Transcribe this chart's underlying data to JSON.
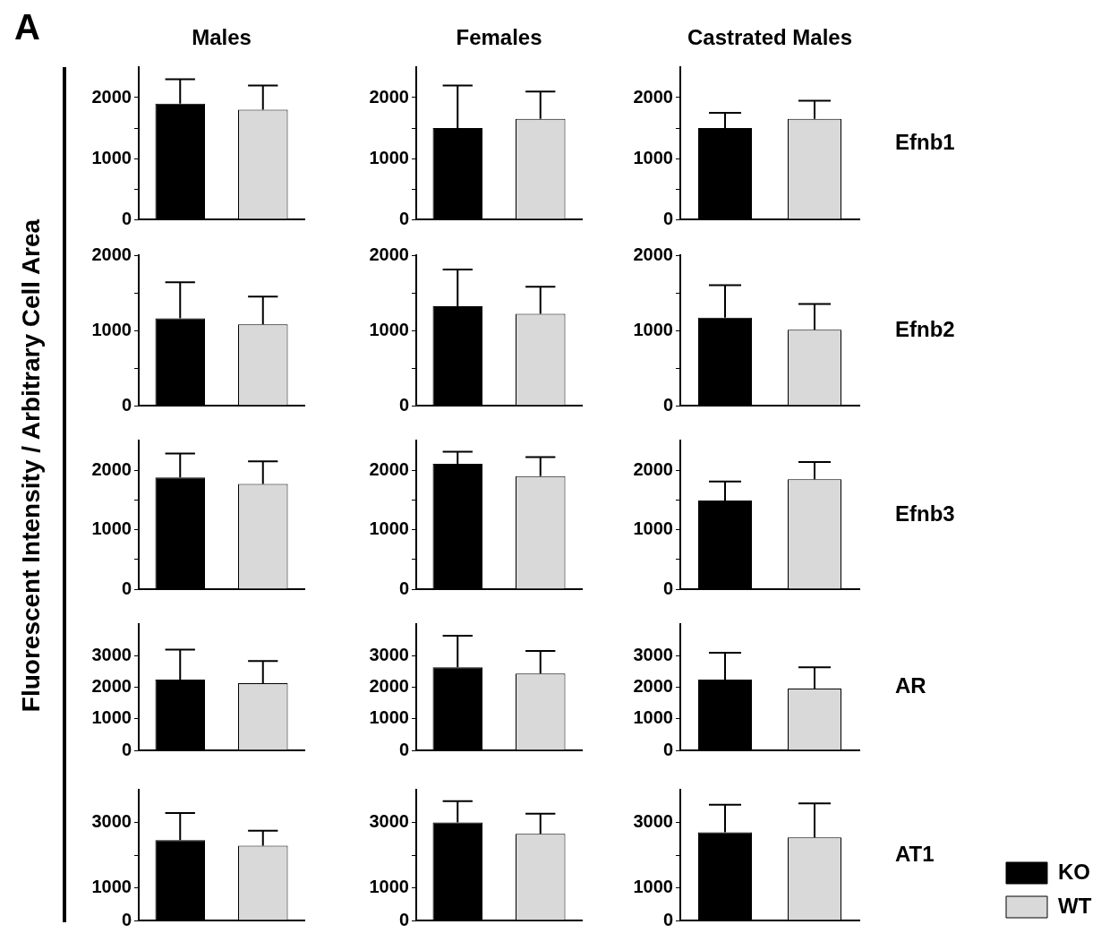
{
  "chart_data": [
    {
      "type": "bar",
      "title": "Males",
      "ylabel": "Fluorescent Intensity / Arbitrary Cell Area",
      "annotations": [
        "A"
      ],
      "categories": [
        null,
        null
      ],
      "tick_labels": "y",
      "ylim": [
        0,
        2500
      ],
      "yticks": [
        0,
        {
          "value": 500,
          "label": null
        },
        1000,
        {
          "value": 1500,
          "label": null
        },
        2000
      ],
      "series": [
        {
          "color": "#000000",
          "values": [
            1900,
            null
          ],
          "errors": [
            [
              1900,
              2300
            ],
            null
          ]
        },
        {
          "color": "#d9d9d9",
          "values": [
            null,
            1800
          ],
          "errors": [
            null,
            [
              1800,
              2200
            ]
          ]
        }
      ]
    },
    {
      "type": "bar",
      "title": "Females",
      "categories": [
        null,
        null
      ],
      "tick_labels": "y",
      "ylim": [
        0,
        2500
      ],
      "yticks": [
        0,
        {
          "value": 500,
          "label": null
        },
        1000,
        {
          "value": 1500,
          "label": null
        },
        2000
      ],
      "series": [
        {
          "color": "#000000",
          "values": [
            1500,
            null
          ],
          "errors": [
            [
              1500,
              2200
            ],
            null
          ]
        },
        {
          "color": "#d9d9d9",
          "values": [
            null,
            1650
          ],
          "errors": [
            null,
            [
              1650,
              2100
            ]
          ]
        }
      ]
    },
    {
      "type": "bar",
      "title": "Castrated Males",
      "annotations": [
        "Efnb1"
      ],
      "categories": [
        null,
        null
      ],
      "tick_labels": "y",
      "ylim": [
        0,
        2500
      ],
      "yticks": [
        0,
        {
          "value": 500,
          "label": null
        },
        1000,
        {
          "value": 1500,
          "label": null
        },
        2000
      ],
      "series": [
        {
          "color": "#000000",
          "values": [
            1500,
            null
          ],
          "errors": [
            [
              1500,
              1750
            ],
            null
          ]
        },
        {
          "color": "#d9d9d9",
          "values": [
            null,
            1650
          ],
          "errors": [
            null,
            [
              1650,
              1950
            ]
          ]
        }
      ]
    },
    {
      "type": "bar",
      "categories": [
        null,
        null
      ],
      "tick_labels": "y",
      "ylim": [
        0,
        2000
      ],
      "yticks": [
        0,
        {
          "value": 500,
          "label": null
        },
        1000,
        {
          "value": 1500,
          "label": null
        },
        2000
      ],
      "series": [
        {
          "color": "#000000",
          "values": [
            1160,
            null
          ],
          "errors": [
            [
              1160,
              1640
            ],
            null
          ]
        },
        {
          "color": "#d9d9d9",
          "values": [
            null,
            1080
          ],
          "errors": [
            null,
            [
              1080,
              1450
            ]
          ]
        }
      ]
    },
    {
      "type": "bar",
      "categories": [
        null,
        null
      ],
      "tick_labels": "y",
      "ylim": [
        0,
        2000
      ],
      "yticks": [
        0,
        {
          "value": 500,
          "label": null
        },
        1000,
        {
          "value": 1500,
          "label": null
        },
        2000
      ],
      "series": [
        {
          "color": "#000000",
          "values": [
            1320,
            null
          ],
          "errors": [
            [
              1320,
              1810
            ],
            null
          ]
        },
        {
          "color": "#d9d9d9",
          "values": [
            null,
            1220
          ],
          "errors": [
            null,
            [
              1220,
              1580
            ]
          ]
        }
      ]
    },
    {
      "type": "bar",
      "annotations": [
        "Efnb2"
      ],
      "categories": [
        null,
        null
      ],
      "tick_labels": "y",
      "ylim": [
        0,
        2000
      ],
      "yticks": [
        0,
        {
          "value": 500,
          "label": null
        },
        1000,
        {
          "value": 1500,
          "label": null
        },
        2000
      ],
      "series": [
        {
          "color": "#000000",
          "values": [
            1170,
            null
          ],
          "errors": [
            [
              1170,
              1600
            ],
            null
          ]
        },
        {
          "color": "#d9d9d9",
          "values": [
            null,
            1010
          ],
          "errors": [
            null,
            [
              1010,
              1350
            ]
          ]
        }
      ]
    },
    {
      "type": "bar",
      "categories": [
        null,
        null
      ],
      "tick_labels": "y",
      "ylim": [
        0,
        2500
      ],
      "yticks": [
        0,
        {
          "value": 500,
          "label": null
        },
        1000,
        {
          "value": 1500,
          "label": null
        },
        2000
      ],
      "series": [
        {
          "color": "#000000",
          "values": [
            1880,
            null
          ],
          "errors": [
            [
              1880,
              2280
            ],
            null
          ]
        },
        {
          "color": "#d9d9d9",
          "values": [
            null,
            1770
          ],
          "errors": [
            null,
            [
              1770,
              2150
            ]
          ]
        }
      ]
    },
    {
      "type": "bar",
      "categories": [
        null,
        null
      ],
      "tick_labels": "y",
      "ylim": [
        0,
        2500
      ],
      "yticks": [
        0,
        {
          "value": 500,
          "label": null
        },
        1000,
        {
          "value": 1500,
          "label": null
        },
        2000
      ],
      "series": [
        {
          "color": "#000000",
          "values": [
            2110,
            null
          ],
          "errors": [
            [
              2110,
              2310
            ],
            null
          ]
        },
        {
          "color": "#d9d9d9",
          "values": [
            null,
            1900
          ],
          "errors": [
            null,
            [
              1900,
              2220
            ]
          ]
        }
      ]
    },
    {
      "type": "bar",
      "annotations": [
        "Efnb3"
      ],
      "categories": [
        null,
        null
      ],
      "tick_labels": "y",
      "ylim": [
        0,
        2500
      ],
      "yticks": [
        0,
        {
          "value": 500,
          "label": null
        },
        1000,
        {
          "value": 1500,
          "label": null
        },
        2000
      ],
      "series": [
        {
          "color": "#000000",
          "values": [
            1490,
            null
          ],
          "errors": [
            [
              1490,
              1810
            ],
            null
          ]
        },
        {
          "color": "#d9d9d9",
          "values": [
            null,
            1850
          ],
          "errors": [
            null,
            [
              1850,
              2140
            ]
          ]
        }
      ]
    },
    {
      "type": "bar",
      "categories": [
        null,
        null
      ],
      "tick_labels": "y",
      "ylim": [
        0,
        4000
      ],
      "yticks": [
        0,
        1000,
        2000,
        3000
      ],
      "series": [
        {
          "color": "#000000",
          "values": [
            2240,
            null
          ],
          "errors": [
            [
              2240,
              3190
            ],
            null
          ]
        },
        {
          "color": "#d9d9d9",
          "values": [
            null,
            2130
          ],
          "errors": [
            null,
            [
              2130,
              2830
            ]
          ]
        }
      ]
    },
    {
      "type": "bar",
      "categories": [
        null,
        null
      ],
      "tick_labels": "y",
      "ylim": [
        0,
        4000
      ],
      "yticks": [
        0,
        1000,
        2000,
        3000
      ],
      "series": [
        {
          "color": "#000000",
          "values": [
            2630,
            null
          ],
          "errors": [
            [
              2630,
              3630
            ],
            null
          ]
        },
        {
          "color": "#d9d9d9",
          "values": [
            null,
            2430
          ],
          "errors": [
            null,
            [
              2430,
              3150
            ]
          ]
        }
      ]
    },
    {
      "type": "bar",
      "annotations": [
        "AR"
      ],
      "categories": [
        null,
        null
      ],
      "tick_labels": "y",
      "ylim": [
        0,
        4000
      ],
      "yticks": [
        0,
        1000,
        2000,
        3000
      ],
      "series": [
        {
          "color": "#000000",
          "values": [
            2240,
            null
          ],
          "errors": [
            [
              2240,
              3090
            ],
            null
          ]
        },
        {
          "color": "#d9d9d9",
          "values": [
            null,
            1960
          ],
          "errors": [
            null,
            [
              1960,
              2630
            ]
          ]
        }
      ]
    },
    {
      "type": "bar",
      "categories": [
        null,
        null
      ],
      "tick_labels": "y",
      "ylim": [
        0,
        4000
      ],
      "yticks": [
        0,
        1000,
        {
          "value": 2000,
          "label": null
        },
        3000
      ],
      "series": [
        {
          "color": "#000000",
          "values": [
            2460,
            null
          ],
          "errors": [
            [
              2460,
              3290
            ],
            null
          ]
        },
        {
          "color": "#d9d9d9",
          "values": [
            null,
            2290
          ],
          "errors": [
            null,
            [
              2290,
              2750
            ]
          ]
        }
      ]
    },
    {
      "type": "bar",
      "categories": [
        null,
        null
      ],
      "tick_labels": "y",
      "ylim": [
        0,
        4000
      ],
      "yticks": [
        0,
        1000,
        {
          "value": 2000,
          "label": null
        },
        3000
      ],
      "series": [
        {
          "color": "#000000",
          "values": [
            3000,
            null
          ],
          "errors": [
            [
              3000,
              3650
            ],
            null
          ]
        },
        {
          "color": "#d9d9d9",
          "values": [
            null,
            2650
          ],
          "errors": [
            null,
            [
              2650,
              3270
            ]
          ]
        }
      ]
    },
    {
      "type": "bar",
      "annotations": [
        "AT1"
      ],
      "legend": "right",
      "categories": [
        null,
        null
      ],
      "tick_labels": "y",
      "ylim": [
        0,
        4000
      ],
      "yticks": [
        0,
        1000,
        {
          "value": 2000,
          "label": null
        },
        3000
      ],
      "series": [
        {
          "name": "KO",
          "color": "#000000",
          "values": [
            2700,
            null
          ],
          "errors": [
            [
              2700,
              3540
            ],
            null
          ]
        },
        {
          "name": "WT",
          "color": "#d9d9d9",
          "values": [
            null,
            2540
          ],
          "errors": [
            null,
            [
              2540,
              3580
            ]
          ]
        }
      ]
    }
  ]
}
